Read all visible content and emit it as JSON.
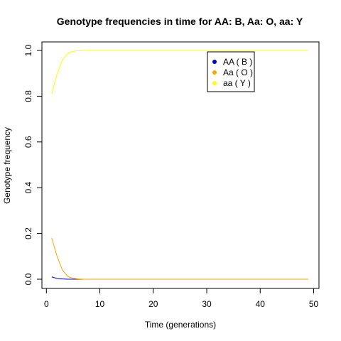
{
  "chart_data": {
    "type": "line",
    "title": "Genotype frequencies in time for  AA: B, Aa: O, aa: Y",
    "xlabel": "Time (generations)",
    "ylabel": "Genotype frequency",
    "xlim": [
      0,
      50
    ],
    "ylim": [
      0,
      1
    ],
    "xticks": [
      "0",
      "10",
      "20",
      "30",
      "40",
      "50"
    ],
    "yticks": [
      "0.0",
      "0.2",
      "0.4",
      "0.6",
      "0.8",
      "1.0"
    ],
    "grid": false,
    "legend_position": "top-right",
    "x": [
      1,
      2,
      3,
      4,
      5,
      6,
      7,
      8,
      9,
      10,
      11,
      12,
      13,
      14,
      15,
      16,
      17,
      18,
      19,
      20,
      21,
      22,
      23,
      24,
      25,
      26,
      27,
      28,
      29,
      30,
      31,
      32,
      33,
      34,
      35,
      36,
      37,
      38,
      39,
      40,
      41,
      42,
      43,
      44,
      45,
      46,
      47,
      48,
      49
    ],
    "series": [
      {
        "name": "AA ( B )",
        "color": "#0000cc",
        "values": [
          0.01,
          0.003,
          0.001,
          0,
          0,
          0,
          0,
          0,
          0,
          0,
          0,
          0,
          0,
          0,
          0,
          0,
          0,
          0,
          0,
          0,
          0,
          0,
          0,
          0,
          0,
          0,
          0,
          0,
          0,
          0,
          0,
          0,
          0,
          0,
          0,
          0,
          0,
          0,
          0,
          0,
          0,
          0,
          0,
          0,
          0,
          0,
          0,
          0,
          0
        ]
      },
      {
        "name": "Aa ( O )",
        "color": "#ffa500",
        "values": [
          0.18,
          0.1,
          0.04,
          0.012,
          0.004,
          0.001,
          0,
          0,
          0,
          0,
          0,
          0,
          0,
          0,
          0,
          0,
          0,
          0,
          0,
          0,
          0,
          0,
          0,
          0,
          0,
          0,
          0,
          0,
          0,
          0,
          0,
          0,
          0,
          0,
          0,
          0,
          0,
          0,
          0,
          0,
          0,
          0,
          0,
          0,
          0,
          0,
          0,
          0,
          0
        ]
      },
      {
        "name": "aa ( Y )",
        "color": "#ffff00",
        "values": [
          0.81,
          0.897,
          0.959,
          0.988,
          0.996,
          0.999,
          1,
          1,
          1,
          1,
          1,
          1,
          1,
          1,
          1,
          1,
          1,
          1,
          1,
          1,
          1,
          1,
          1,
          1,
          1,
          1,
          1,
          1,
          1,
          1,
          1,
          1,
          1,
          1,
          1,
          1,
          1,
          1,
          1,
          1,
          1,
          1,
          1,
          1,
          1,
          1,
          1,
          1,
          1
        ]
      }
    ]
  }
}
